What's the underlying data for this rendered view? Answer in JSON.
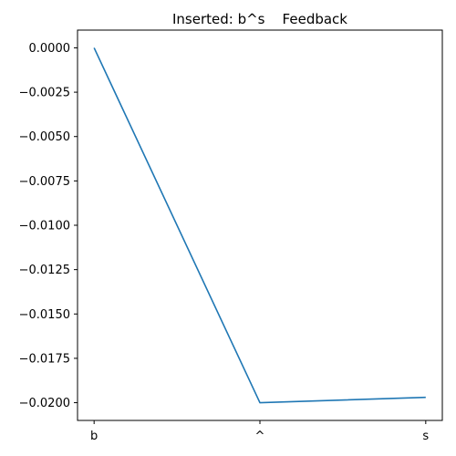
{
  "chart_data": {
    "type": "line",
    "title": "Inserted: b^s    Feedback",
    "xlabel": "",
    "ylabel": "",
    "categories": [
      "b",
      "^",
      "s"
    ],
    "series": [
      {
        "values": [
          0.0,
          -0.02,
          -0.0197
        ]
      }
    ],
    "ylim": [
      -0.021,
      0.001
    ],
    "yticks": [
      0.0,
      -0.0025,
      -0.005,
      -0.0075,
      -0.01,
      -0.0125,
      -0.015,
      -0.0175,
      -0.02
    ],
    "ytick_labels": [
      "0.0000",
      "−0.0025",
      "−0.0050",
      "−0.0075",
      "−0.0100",
      "−0.0125",
      "−0.0150",
      "−0.0175",
      "−0.0200"
    ],
    "grid": false,
    "colors": {
      "line": "#1f77b4",
      "axes": "#000000"
    }
  }
}
